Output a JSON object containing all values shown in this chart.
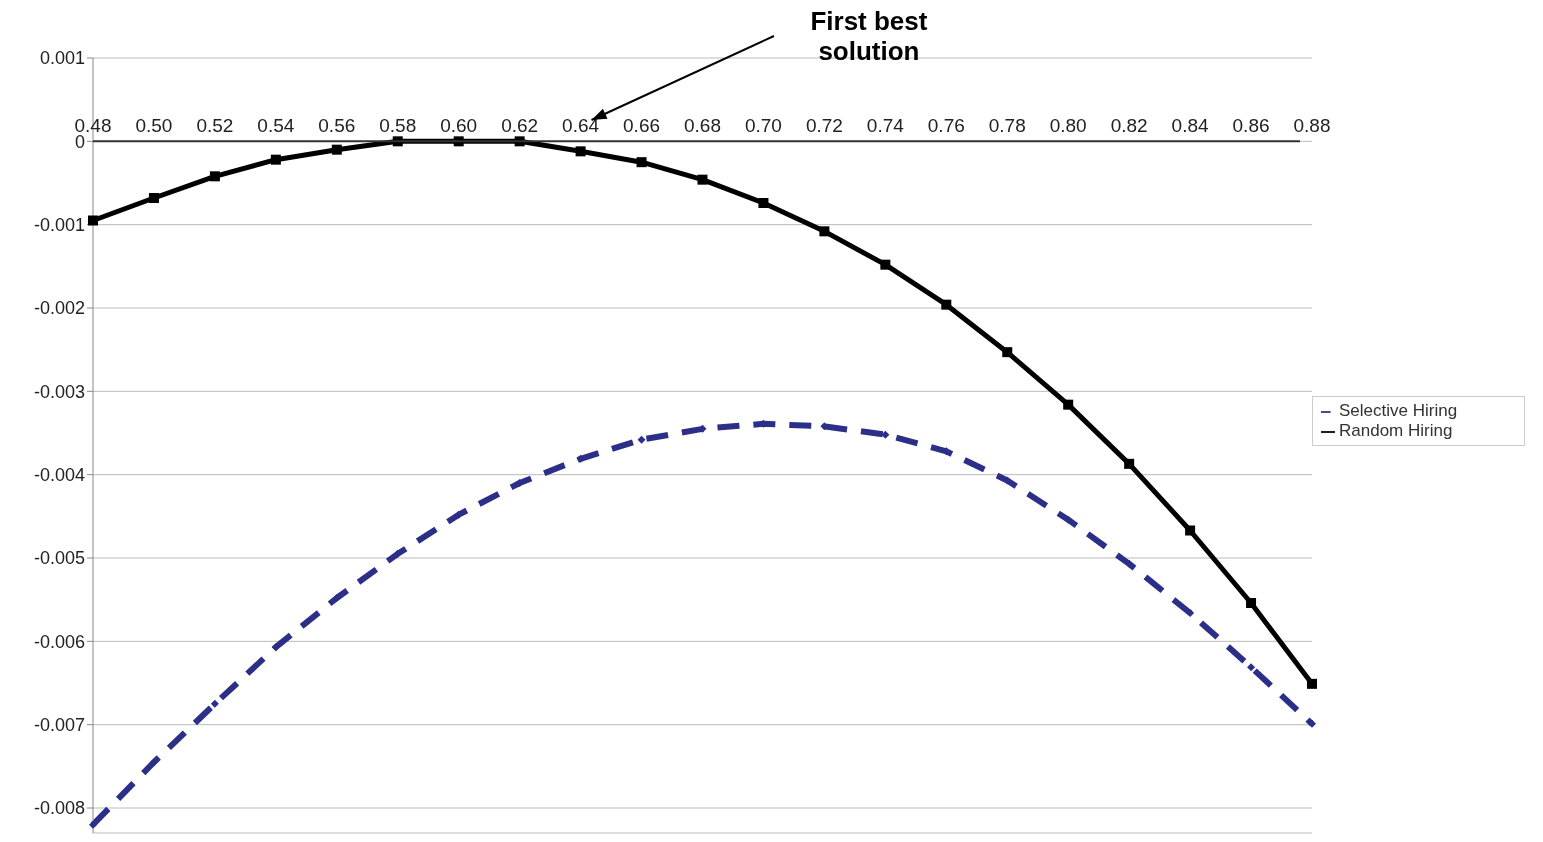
{
  "chart_data": {
    "type": "line",
    "categories": [
      "0.48",
      "0.50",
      "0.52",
      "0.54",
      "0.56",
      "0.58",
      "0.60",
      "0.62",
      "0.64",
      "0.66",
      "0.68",
      "0.70",
      "0.72",
      "0.74",
      "0.76",
      "0.78",
      "0.80",
      "0.82",
      "0.84",
      "0.86",
      "0.88"
    ],
    "series": [
      {
        "name": "Selective Hiring",
        "color": "#2b2f87",
        "marker": "diamond",
        "line_style": "dashed",
        "values": [
          -0.0082,
          -0.00745,
          -0.00675,
          -0.00607,
          -0.00548,
          -0.00495,
          -0.00448,
          -0.0041,
          -0.00381,
          -0.00358,
          -0.00345,
          -0.00339,
          -0.00342,
          -0.00352,
          -0.00372,
          -0.00407,
          -0.00454,
          -0.00507,
          -0.00566,
          -0.00631,
          -0.00699
        ]
      },
      {
        "name": "Random Hiring",
        "color": "#000000",
        "marker": "square",
        "line_style": "solid",
        "values": [
          -0.00095,
          -0.00068,
          -0.00042,
          -0.00022,
          -0.0001,
          0,
          0,
          0,
          -0.00012,
          -0.00025,
          -0.00046,
          -0.00074,
          -0.00108,
          -0.00148,
          -0.00196,
          -0.00253,
          -0.00316,
          -0.00387,
          -0.00467,
          -0.00554,
          -0.00651
        ]
      }
    ],
    "ylim": [
      -0.0083,
      0.001
    ],
    "yticks": [
      0.001,
      0,
      -0.001,
      -0.002,
      -0.003,
      -0.004,
      -0.005,
      -0.006,
      -0.007,
      -0.008
    ],
    "grid": "y",
    "legend": "right",
    "annotations": [
      "First best solution"
    ]
  }
}
